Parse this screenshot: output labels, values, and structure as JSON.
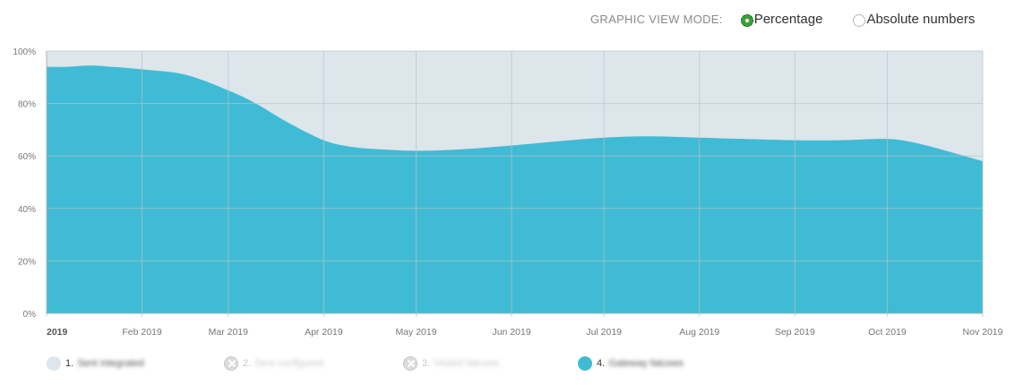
{
  "view_mode": {
    "label": "GRAPHIC VIEW MODE:",
    "options": [
      "Percentage",
      "Absolute numbers"
    ],
    "selected": "Percentage"
  },
  "colors": {
    "series_fill": "#40bbd5",
    "background_area": "#dde6eb",
    "grid": "#b8c2c7",
    "legend_off": "#dcdcdc"
  },
  "legend": [
    {
      "index": "1.",
      "text": "Sent integrated",
      "color": "#dde6eb",
      "enabled": true
    },
    {
      "index": "2.",
      "text": "Sent configured",
      "color": "#dcdcdc",
      "enabled": false
    },
    {
      "index": "3.",
      "text": "Visited fatcows",
      "color": "#dcdcdc",
      "enabled": false
    },
    {
      "index": "4.",
      "text": "Gateway fatcows",
      "color": "#40bbd5",
      "enabled": true
    }
  ],
  "chart_data": {
    "type": "area",
    "stacked_percent": true,
    "title": "",
    "xlabel": "",
    "ylabel": "",
    "ylim": [
      0,
      100
    ],
    "y_ticks": [
      "0%",
      "20%",
      "40%",
      "60%",
      "80%",
      "100%"
    ],
    "x_ticks": [
      "2019",
      "Feb 2019",
      "Mar 2019",
      "Apr 2019",
      "May 2019",
      "Jun 2019",
      "Jul 2019",
      "Aug 2019",
      "Sep 2019",
      "Oct 2019",
      "Nov 2019"
    ],
    "grid": true,
    "legend_position": "bottom-left",
    "x": [
      "2019-01-01",
      "2019-01-08",
      "2019-01-15",
      "2019-01-22",
      "2019-02-01",
      "2019-02-15",
      "2019-03-01",
      "2019-03-10",
      "2019-03-20",
      "2019-04-01",
      "2019-04-10",
      "2019-04-20",
      "2019-05-01",
      "2019-05-15",
      "2019-06-01",
      "2019-06-15",
      "2019-07-01",
      "2019-07-15",
      "2019-08-01",
      "2019-08-15",
      "2019-09-01",
      "2019-09-15",
      "2019-10-01",
      "2019-10-10",
      "2019-10-20",
      "2019-11-01"
    ],
    "series": [
      {
        "values": [
          94,
          94,
          94.5,
          94,
          93,
          91,
          85,
          80,
          73,
          66,
          63.5,
          62.5,
          62,
          62.5,
          64,
          65.5,
          67,
          67.5,
          67,
          66.5,
          66,
          66,
          66.5,
          65,
          62,
          58
        ]
      },
      {
        "values": [
          6,
          6,
          5.5,
          6,
          7,
          9,
          15,
          20,
          27,
          34,
          36.5,
          37.5,
          38,
          37.5,
          36,
          34.5,
          33,
          32.5,
          33,
          33.5,
          34,
          34,
          33.5,
          35,
          38,
          42
        ]
      }
    ]
  }
}
